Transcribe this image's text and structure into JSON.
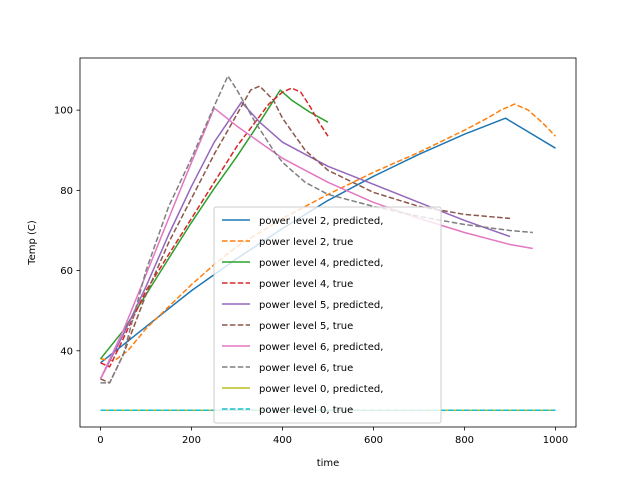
{
  "chart_data": {
    "type": "line",
    "title": "",
    "xlabel": "time",
    "ylabel": "Temp (C)",
    "xlim": [
      -45,
      1045
    ],
    "ylim": [
      21,
      113
    ],
    "xticks": [
      0,
      200,
      400,
      600,
      800,
      1000
    ],
    "yticks": [
      40,
      60,
      80,
      100
    ],
    "grid": false,
    "legend_position": "lower-center",
    "series": [
      {
        "name": "power level 2, predicted,",
        "color": "#1f77b4",
        "style": "solid",
        "x": [
          0,
          50,
          100,
          200,
          300,
          400,
          500,
          600,
          700,
          800,
          890,
          1000
        ],
        "y": [
          37,
          41.5,
          46,
          55,
          63,
          70.5,
          77.5,
          83.5,
          89,
          94,
          98,
          90.5
        ]
      },
      {
        "name": "power level 2, true",
        "color": "#ff7f0e",
        "style": "dashed",
        "x": [
          0,
          30,
          60,
          100,
          150,
          200,
          250,
          300,
          400,
          500,
          600,
          700,
          800,
          850,
          880,
          910,
          940,
          970,
          1000
        ],
        "y": [
          38,
          37.5,
          40,
          45.5,
          51,
          56.5,
          61.5,
          66,
          73,
          79,
          84.5,
          89.5,
          95,
          98,
          100,
          101.5,
          100,
          97,
          93.5
        ]
      },
      {
        "name": "power level 4, predicted,",
        "color": "#2ca02c",
        "style": "solid",
        "x": [
          0,
          50,
          100,
          150,
          200,
          250,
          300,
          350,
          395,
          420,
          460,
          500
        ],
        "y": [
          38,
          45,
          54,
          63,
          72,
          80.5,
          88.5,
          97,
          105,
          102.5,
          99.5,
          97
        ]
      },
      {
        "name": "power level 4, true",
        "color": "#d62728",
        "style": "dashed",
        "x": [
          0,
          20,
          50,
          100,
          150,
          200,
          250,
          300,
          340,
          370,
          400,
          420,
          440,
          460,
          480,
          500
        ],
        "y": [
          37,
          36,
          43,
          55,
          64,
          73,
          82,
          91,
          97,
          101.5,
          104.5,
          105.5,
          104.5,
          101,
          97,
          93.5
        ]
      },
      {
        "name": "power level 5, predicted,",
        "color": "#9467bd",
        "style": "solid",
        "x": [
          0,
          50,
          100,
          150,
          200,
          250,
          310,
          350,
          400,
          450,
          500,
          600,
          700,
          800,
          900
        ],
        "y": [
          33,
          44,
          56,
          69,
          81,
          92,
          102,
          97,
          92,
          89,
          86,
          81.5,
          77,
          72.5,
          68.5
        ]
      },
      {
        "name": "power level 5, true",
        "color": "#8c564b",
        "style": "dashed",
        "x": [
          0,
          20,
          50,
          100,
          150,
          200,
          250,
          300,
          330,
          350,
          380,
          400,
          450,
          500,
          600,
          700,
          800,
          900
        ],
        "y": [
          33,
          32,
          39,
          54,
          67,
          78,
          89,
          99,
          105,
          106,
          102.5,
          98,
          90,
          85,
          79.5,
          76,
          74,
          73
        ]
      },
      {
        "name": "power level 6, predicted,",
        "color": "#e377c2",
        "style": "solid",
        "x": [
          0,
          50,
          100,
          150,
          200,
          250,
          300,
          350,
          400,
          500,
          600,
          700,
          800,
          900,
          950
        ],
        "y": [
          33,
          45,
          59,
          73,
          87,
          100.5,
          96,
          92,
          88,
          82,
          77,
          73,
          69.5,
          66.5,
          65.5
        ]
      },
      {
        "name": "power level 6, true",
        "color": "#7f7f7f",
        "style": "dashed",
        "x": [
          0,
          20,
          50,
          100,
          150,
          200,
          250,
          280,
          300,
          340,
          380,
          400,
          450,
          500,
          600,
          700,
          800,
          900,
          950
        ],
        "y": [
          32,
          32,
          39,
          60,
          76,
          88,
          101,
          108.5,
          105,
          97,
          90,
          87,
          82,
          79,
          76,
          73.5,
          71.5,
          70,
          69.5
        ]
      },
      {
        "name": "power level 0, predicted,",
        "color": "#bcbd22",
        "style": "solid",
        "x": [
          0,
          1000
        ],
        "y": [
          25.2,
          25.2
        ]
      },
      {
        "name": "power level 0, true",
        "color": "#17becf",
        "style": "dashed",
        "x": [
          0,
          1000
        ],
        "y": [
          25.2,
          25.2
        ]
      }
    ]
  }
}
